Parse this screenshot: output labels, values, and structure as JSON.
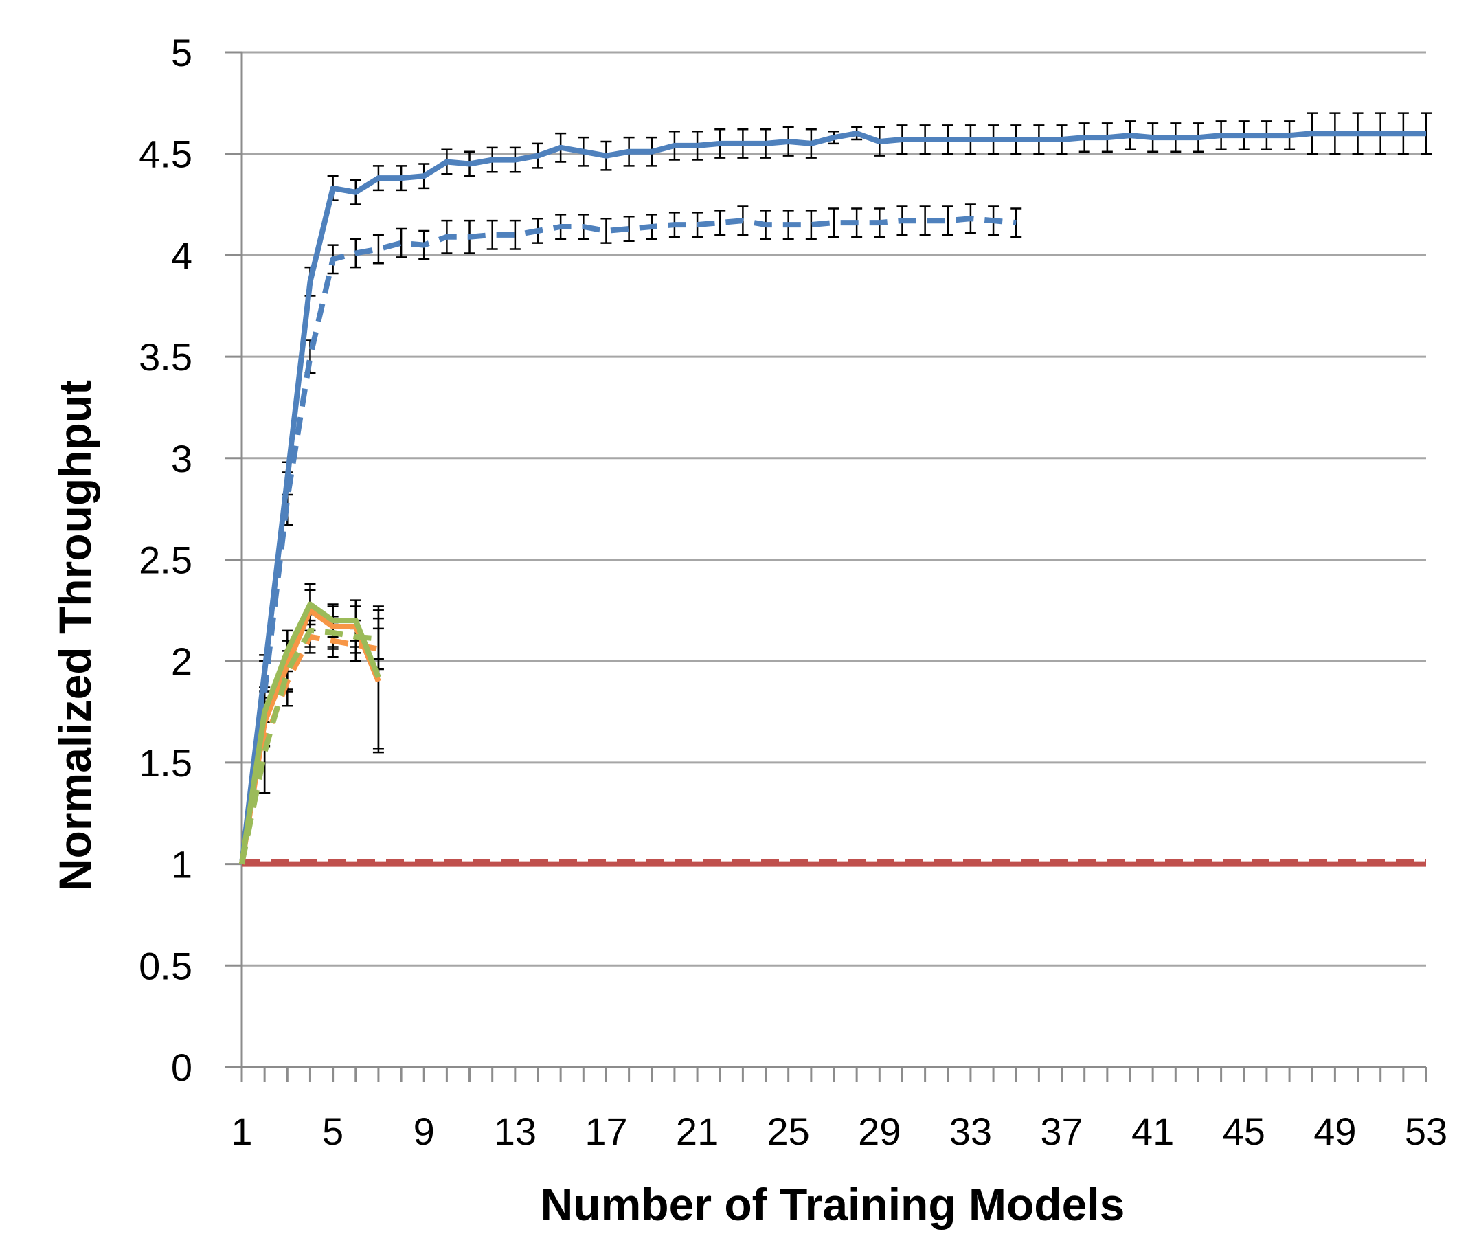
{
  "chart_data": {
    "type": "line",
    "title": "",
    "xlabel": "Number of Training Models",
    "ylabel": "Normalized Throughput",
    "xlim": [
      1,
      53
    ],
    "ylim": [
      0,
      5
    ],
    "y_ticks": [
      "0",
      "0.5",
      "1",
      "1.5",
      "2",
      "2.5",
      "3",
      "3.5",
      "4",
      "4.5",
      "5"
    ],
    "x_ticks": [
      "1",
      "5",
      "9",
      "13",
      "17",
      "21",
      "25",
      "29",
      "33",
      "37",
      "41",
      "45",
      "49",
      "53"
    ],
    "grid": true,
    "legend": "none",
    "series": [
      {
        "name": "blue solid",
        "color": "#4f81bd",
        "dash": "solid",
        "x": [
          1,
          2,
          3,
          4,
          5,
          6,
          7,
          8,
          9,
          10,
          11,
          12,
          13,
          14,
          15,
          16,
          17,
          18,
          19,
          20,
          21,
          22,
          23,
          24,
          25,
          26,
          27,
          28,
          29,
          30,
          31,
          32,
          33,
          34,
          35,
          36,
          37,
          38,
          39,
          40,
          41,
          42,
          43,
          44,
          45,
          46,
          47,
          48,
          49,
          50,
          51,
          52,
          53
        ],
        "values": [
          1.0,
          1.95,
          2.9,
          3.87,
          4.33,
          4.31,
          4.38,
          4.38,
          4.39,
          4.46,
          4.45,
          4.47,
          4.47,
          4.49,
          4.53,
          4.51,
          4.49,
          4.51,
          4.51,
          4.54,
          4.54,
          4.55,
          4.55,
          4.55,
          4.56,
          4.55,
          4.58,
          4.6,
          4.56,
          4.57,
          4.57,
          4.57,
          4.57,
          4.57,
          4.57,
          4.57,
          4.57,
          4.58,
          4.58,
          4.59,
          4.58,
          4.58,
          4.58,
          4.59,
          4.59,
          4.59,
          4.59,
          4.6,
          4.6,
          4.6,
          4.6,
          4.6,
          4.6
        ],
        "error": [
          0,
          0.08,
          0.08,
          0.07,
          0.06,
          0.06,
          0.06,
          0.06,
          0.06,
          0.06,
          0.06,
          0.06,
          0.06,
          0.06,
          0.07,
          0.07,
          0.07,
          0.07,
          0.07,
          0.07,
          0.07,
          0.07,
          0.07,
          0.07,
          0.07,
          0.07,
          0.03,
          0.03,
          0.07,
          0.07,
          0.07,
          0.07,
          0.07,
          0.07,
          0.07,
          0.07,
          0.07,
          0.07,
          0.07,
          0.07,
          0.07,
          0.07,
          0.07,
          0.07,
          0.07,
          0.07,
          0.07,
          0.1,
          0.1,
          0.1,
          0.1,
          0.1,
          0.1
        ]
      },
      {
        "name": "blue dashed",
        "color": "#4f81bd",
        "dash": "dashed",
        "x": [
          1,
          2,
          3,
          4,
          5,
          6,
          7,
          8,
          9,
          10,
          11,
          12,
          13,
          14,
          15,
          16,
          17,
          18,
          19,
          20,
          21,
          22,
          23,
          24,
          25,
          26,
          27,
          28,
          29,
          30,
          31,
          32,
          33,
          34,
          35
        ],
        "values": [
          1.0,
          1.85,
          2.8,
          3.5,
          3.98,
          4.01,
          4.03,
          4.06,
          4.05,
          4.09,
          4.09,
          4.1,
          4.1,
          4.12,
          4.14,
          4.14,
          4.12,
          4.13,
          4.14,
          4.15,
          4.15,
          4.16,
          4.17,
          4.15,
          4.15,
          4.15,
          4.16,
          4.16,
          4.16,
          4.17,
          4.17,
          4.17,
          4.18,
          4.17,
          4.16
        ],
        "error": [
          0,
          0.15,
          0.13,
          0.08,
          0.07,
          0.07,
          0.07,
          0.07,
          0.07,
          0.08,
          0.08,
          0.07,
          0.07,
          0.06,
          0.06,
          0.06,
          0.06,
          0.06,
          0.06,
          0.06,
          0.06,
          0.06,
          0.07,
          0.07,
          0.07,
          0.07,
          0.07,
          0.07,
          0.07,
          0.07,
          0.07,
          0.07,
          0.07,
          0.07,
          0.07
        ]
      },
      {
        "name": "red solid",
        "color": "#c0504d",
        "dash": "solid",
        "x": [
          1,
          53
        ],
        "values": [
          1.0,
          1.0
        ],
        "error": [
          0,
          0
        ]
      },
      {
        "name": "red dashed",
        "color": "#c0504d",
        "dash": "dashed",
        "x": [
          1,
          53
        ],
        "values": [
          1.01,
          1.01
        ],
        "error": [
          0,
          0
        ]
      },
      {
        "name": "orange solid",
        "color": "#f79646",
        "dash": "solid",
        "x": [
          1,
          2,
          3,
          4,
          5,
          6,
          7
        ],
        "values": [
          1.0,
          1.7,
          1.98,
          2.25,
          2.17,
          2.17,
          1.9
        ],
        "error": [
          0,
          0.12,
          0.12,
          0.1,
          0.1,
          0.1,
          0.35
        ]
      },
      {
        "name": "orange dashed",
        "color": "#f79646",
        "dash": "dashed",
        "x": [
          1,
          2,
          3,
          4,
          5,
          6,
          7
        ],
        "values": [
          1.0,
          1.6,
          1.9,
          2.12,
          2.1,
          2.08,
          2.06
        ],
        "error": [
          0,
          0.25,
          0.12,
          0.08,
          0.08,
          0.08,
          0.1
        ]
      },
      {
        "name": "green solid",
        "color": "#9bbb59",
        "dash": "solid",
        "x": [
          1,
          2,
          3,
          4,
          5,
          6,
          7
        ],
        "values": [
          1.0,
          1.75,
          2.05,
          2.28,
          2.2,
          2.2,
          1.92
        ],
        "error": [
          0,
          0.12,
          0.1,
          0.1,
          0.08,
          0.1,
          0.35
        ]
      },
      {
        "name": "green dashed",
        "color": "#9bbb59",
        "dash": "dashed",
        "x": [
          1,
          2,
          3,
          4,
          5,
          6,
          7
        ],
        "values": [
          1.0,
          1.55,
          1.95,
          2.15,
          2.14,
          2.12,
          2.11
        ],
        "error": [
          0,
          0.2,
          0.1,
          0.08,
          0.08,
          0.08,
          0.1
        ]
      }
    ]
  }
}
